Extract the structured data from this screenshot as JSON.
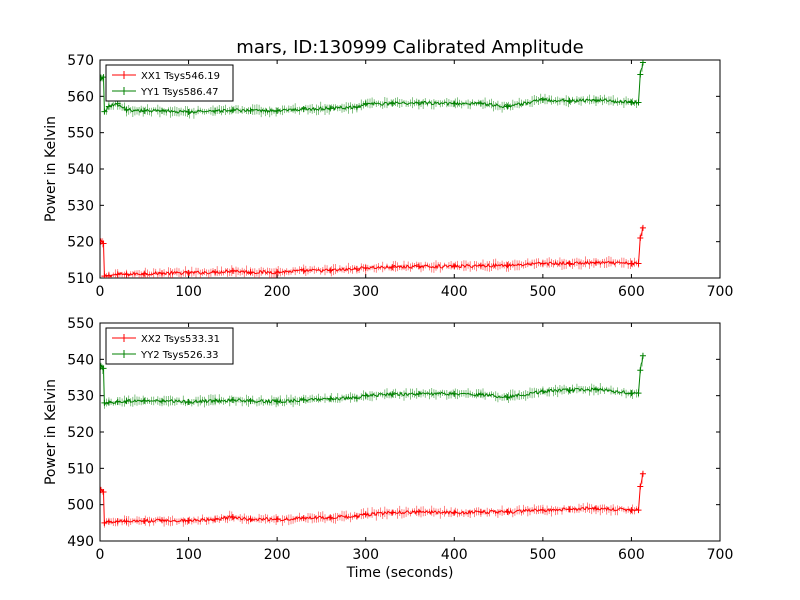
{
  "figure": {
    "title": "mars, ID:130999 Calibrated Amplitude"
  },
  "colors": {
    "red": "#ff0000",
    "green": "#008000"
  },
  "chart_data": [
    {
      "type": "line",
      "title": "mars, ID:130999 Calibrated Amplitude",
      "xlabel": "",
      "ylabel": "Power in Kelvin",
      "xlim": [
        0,
        700
      ],
      "ylim": [
        510,
        570
      ],
      "xticks": [
        0,
        100,
        200,
        300,
        400,
        500,
        600,
        700
      ],
      "yticks": [
        510,
        520,
        530,
        540,
        550,
        560,
        570
      ],
      "grid": false,
      "legend_position": "top-left",
      "series": [
        {
          "name": "XX1 Tsys546.19",
          "color": "#ff0000",
          "x": [
            1,
            4,
            5,
            10,
            20,
            30,
            50,
            70,
            100,
            130,
            150,
            170,
            200,
            230,
            260,
            290,
            300,
            330,
            360,
            400,
            430,
            460,
            500,
            530,
            560,
            600,
            608,
            610,
            613
          ],
          "y": [
            520,
            519.5,
            510.5,
            510.7,
            511,
            511,
            511.2,
            511.3,
            511.4,
            511.6,
            512,
            511.6,
            511.6,
            512,
            512.1,
            512.5,
            512.8,
            513,
            513.2,
            513.2,
            513.4,
            513.5,
            514,
            514,
            514.2,
            514,
            514,
            521,
            523.8
          ]
        },
        {
          "name": "YY1 Tsys586.47",
          "color": "#008000",
          "x": [
            1,
            4,
            5,
            10,
            20,
            30,
            50,
            70,
            100,
            130,
            150,
            170,
            200,
            230,
            260,
            290,
            300,
            330,
            360,
            400,
            430,
            460,
            500,
            530,
            560,
            600,
            608,
            610,
            613
          ],
          "y": [
            565,
            565.3,
            555.8,
            557.2,
            558,
            556.3,
            556,
            556,
            555.7,
            556,
            556.2,
            556,
            556,
            556.5,
            556.7,
            557,
            558,
            558,
            558.2,
            558,
            558,
            557.2,
            559,
            558.8,
            559,
            558.3,
            558.3,
            566,
            569.3
          ]
        }
      ]
    },
    {
      "type": "line",
      "title": "",
      "xlabel": "Time (seconds)",
      "ylabel": "Power in Kelvin",
      "xlim": [
        0,
        700
      ],
      "ylim": [
        490,
        550
      ],
      "xticks": [
        0,
        100,
        200,
        300,
        400,
        500,
        600,
        700
      ],
      "yticks": [
        490,
        500,
        510,
        520,
        530,
        540,
        550
      ],
      "grid": false,
      "legend_position": "top-left",
      "series": [
        {
          "name": "XX2 Tsys533.31",
          "color": "#ff0000",
          "x": [
            1,
            4,
            5,
            10,
            20,
            30,
            50,
            70,
            100,
            130,
            150,
            170,
            200,
            230,
            260,
            290,
            300,
            330,
            360,
            400,
            430,
            460,
            500,
            530,
            560,
            600,
            608,
            610,
            613
          ],
          "y": [
            504,
            503.5,
            495,
            495.3,
            495.4,
            495.4,
            495.5,
            495.7,
            495.6,
            496,
            496.6,
            496,
            496,
            496.3,
            496.5,
            496.8,
            497.3,
            497.8,
            498,
            497.8,
            498,
            498,
            498.5,
            498.7,
            499,
            498.5,
            498.5,
            505,
            508.5
          ]
        },
        {
          "name": "YY2 Tsys526.33",
          "color": "#008000",
          "x": [
            1,
            4,
            5,
            10,
            20,
            30,
            50,
            70,
            100,
            130,
            150,
            170,
            200,
            230,
            260,
            290,
            300,
            330,
            360,
            400,
            430,
            460,
            500,
            530,
            560,
            600,
            608,
            610,
            613
          ],
          "y": [
            538,
            537.5,
            528,
            528.1,
            528.3,
            528.5,
            528.6,
            528.5,
            528.3,
            528.6,
            528.8,
            528.5,
            528.4,
            528.8,
            529.2,
            529.3,
            530,
            530.4,
            530.5,
            530.5,
            530.3,
            529.6,
            531.2,
            531.5,
            531.7,
            530.7,
            530.7,
            537,
            541
          ]
        }
      ]
    }
  ]
}
